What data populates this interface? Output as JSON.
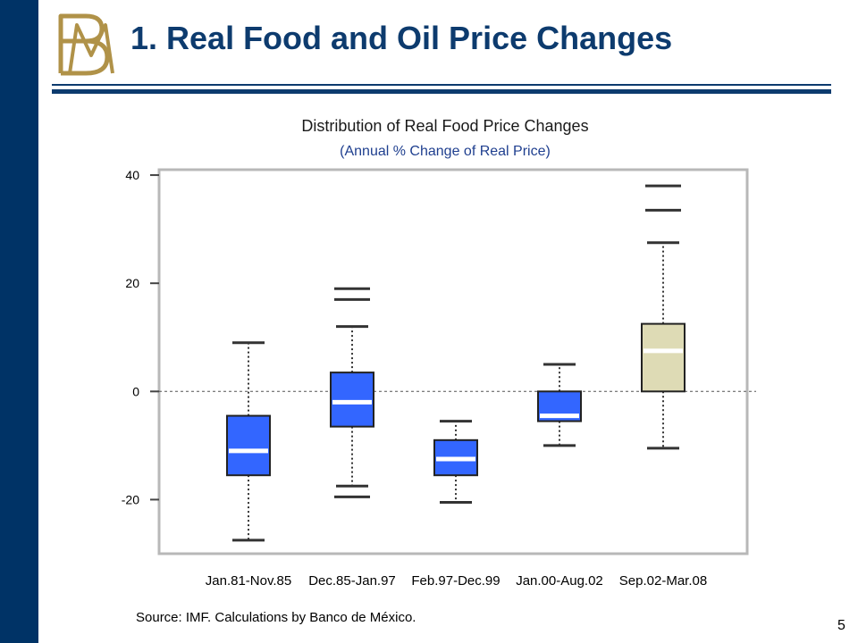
{
  "slide": {
    "title": "1. Real Food and Oil Price Changes",
    "source": "Source: IMF. Calculations by Banco de México.",
    "page_number": "5",
    "logo_letters": "BM"
  },
  "colors": {
    "sidebar": "#003366",
    "title": "#0d3b6e",
    "rule": "#0d3b6e",
    "subtitle": "#1f3f8f",
    "box_blue": "#3366ff",
    "box_highlight": "#dedbb5",
    "logo": "#b09248"
  },
  "chart_data": {
    "type": "box",
    "title": "Distribution of Real Food Price Changes",
    "subtitle": "(Annual % Change of Real Price)",
    "xlabel": "",
    "ylabel": "",
    "ylim": [
      -30,
      41
    ],
    "yticks": [
      -20,
      0,
      20,
      40
    ],
    "reference_line": 0,
    "categories": [
      "Jan.81-Nov.85",
      "Dec.85-Jan.97",
      "Feb.97-Dec.99",
      "Jan.00-Aug.02",
      "Sep.02-Mar.08"
    ],
    "boxes": [
      {
        "q1": -15.5,
        "median": -11,
        "q3": -4.5,
        "whisker_low": -27.5,
        "whisker_high": 9,
        "outliers": [],
        "highlight": false
      },
      {
        "q1": -6.5,
        "median": -2,
        "q3": 3.5,
        "whisker_low": -17.5,
        "whisker_high": 12,
        "outliers": [
          -19.5,
          17,
          19
        ],
        "highlight": false
      },
      {
        "q1": -15.5,
        "median": -12.5,
        "q3": -9,
        "whisker_low": -20.5,
        "whisker_high": -5.5,
        "outliers": [],
        "highlight": false
      },
      {
        "q1": -5.5,
        "median": -4.5,
        "q3": 0,
        "whisker_low": -10,
        "whisker_high": 5,
        "outliers": [],
        "highlight": false
      },
      {
        "q1": 0,
        "median": 7.5,
        "q3": 12.5,
        "whisker_low": -10.5,
        "whisker_high": 27.5,
        "outliers": [
          33.5,
          38
        ],
        "highlight": true
      }
    ]
  }
}
